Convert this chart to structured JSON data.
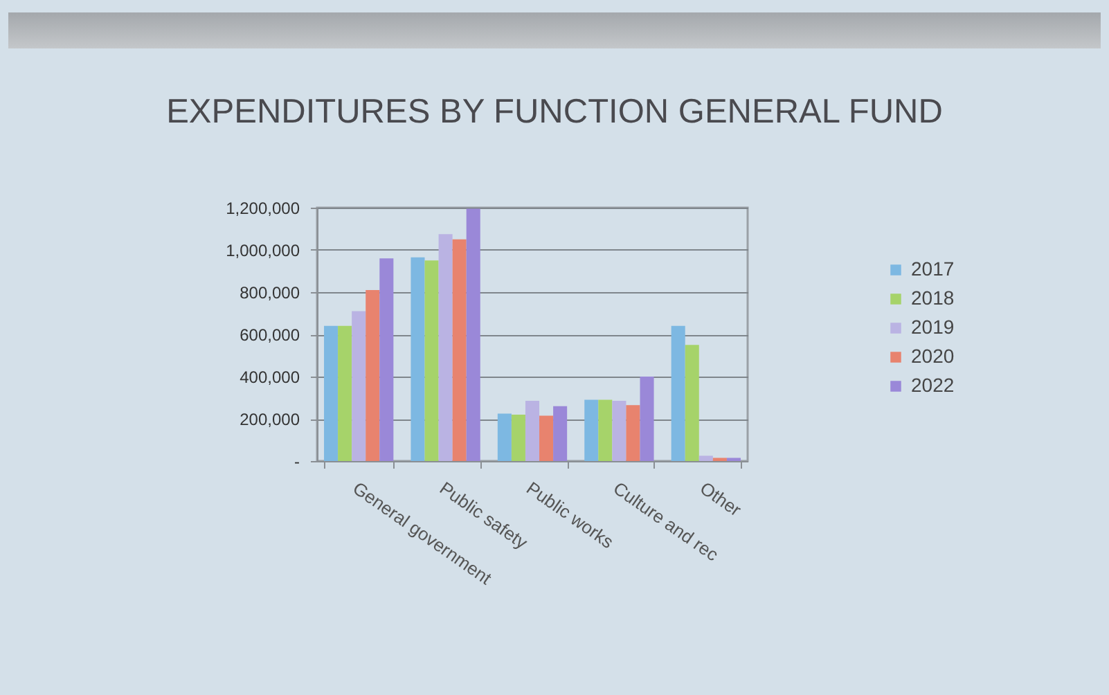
{
  "chart_data": {
    "type": "bar",
    "title": "EXPENDITURES BY FUNCTION GENERAL FUND",
    "categories": [
      "General government",
      "Public safety",
      "Public works",
      "Culture and rec",
      "Other"
    ],
    "series": [
      {
        "name": "2017",
        "color": "#7db8e2",
        "values": [
          640000,
          965000,
          225000,
          290000,
          640000
        ]
      },
      {
        "name": "2018",
        "color": "#a6d36a",
        "values": [
          640000,
          950000,
          220000,
          290000,
          550000
        ]
      },
      {
        "name": "2019",
        "color": "#bab3e3",
        "values": [
          710000,
          1075000,
          285000,
          285000,
          25000
        ]
      },
      {
        "name": "2020",
        "color": "#e8836e",
        "values": [
          810000,
          1050000,
          215000,
          265000,
          15000
        ]
      },
      {
        "name": "2022",
        "color": "#9a88d8",
        "values": [
          960000,
          1195000,
          260000,
          400000,
          15000
        ]
      }
    ],
    "ylim": [
      0,
      1200000
    ],
    "yticks": [
      {
        "value": 0,
        "label": "-"
      },
      {
        "value": 200000,
        "label": "200,000"
      },
      {
        "value": 400000,
        "label": "400,000"
      },
      {
        "value": 600000,
        "label": "600,000"
      },
      {
        "value": 800000,
        "label": "800,000"
      },
      {
        "value": 1000000,
        "label": "1,000,000"
      },
      {
        "value": 1200000,
        "label": "1,200,000"
      }
    ],
    "grid": "y",
    "legend": "right"
  }
}
